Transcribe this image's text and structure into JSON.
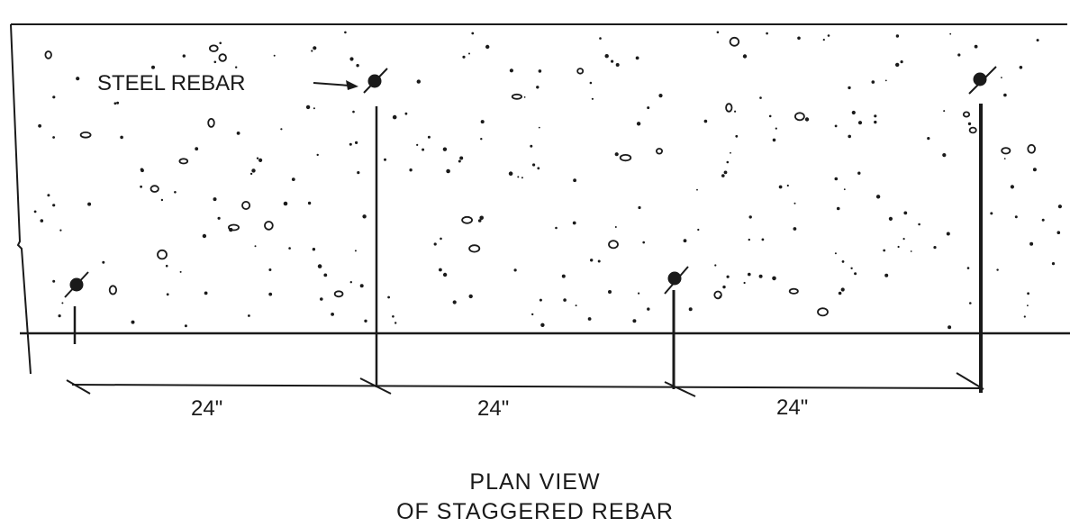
{
  "labels": {
    "rebar_callout": "STEEL REBAR",
    "spacings": [
      "24\"",
      "24\"",
      "24\""
    ]
  },
  "caption": {
    "line1": "PLAN VIEW",
    "line2": "OF STAGGERED REBAR"
  },
  "colors": {
    "ink": "#1a1a1a",
    "paper": "#ffffff"
  }
}
